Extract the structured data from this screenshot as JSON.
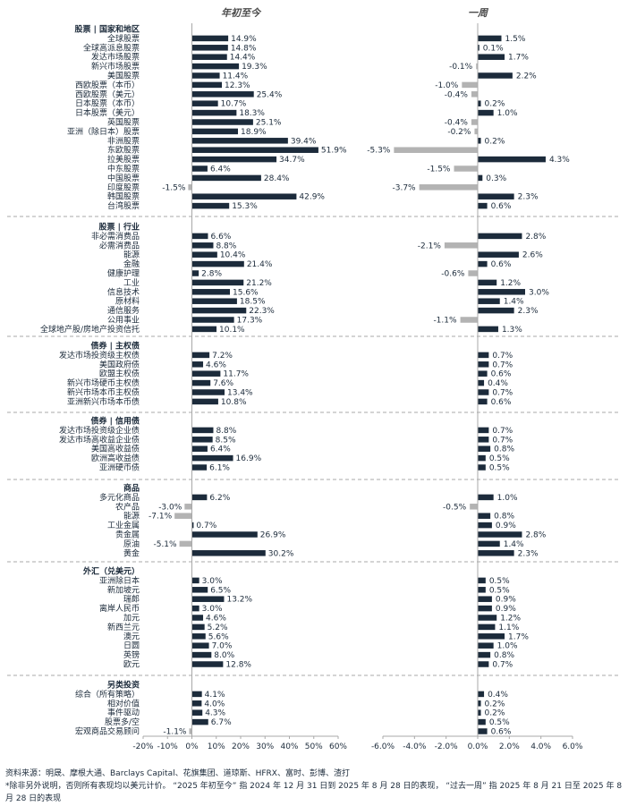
{
  "chart_data": {
    "type": "bar",
    "orientation": "horizontal",
    "panels": [
      {
        "title": "年初至今",
        "xlim": [
          -20,
          60
        ],
        "ticks": [
          "-20%",
          "-10%",
          "0%",
          "10%",
          "20%",
          "30%",
          "40%",
          "50%",
          "60%"
        ]
      },
      {
        "title": "一周",
        "xlim": [
          -6,
          6
        ],
        "ticks": [
          "-6.0%",
          "-4.0%",
          "-2.0%",
          "0.0%",
          "2.0%",
          "4.0%",
          "6.0%"
        ]
      }
    ],
    "colors": {
      "positive": "#1c2b3b",
      "negative": "#b3b3b3"
    },
    "sections": [
      {
        "title": "股票 | 国家和地区",
        "items": [
          {
            "name": "全球股票",
            "ytd": 14.9,
            "ytd_label": "14.9%",
            "week": 1.5,
            "week_label": "1.5%"
          },
          {
            "name": "全球高派息股票",
            "ytd": 14.8,
            "ytd_label": "14.8%",
            "week": 0.1,
            "week_label": "0.1%"
          },
          {
            "name": "发达市场股票",
            "ytd": 14.4,
            "ytd_label": "14.4%",
            "week": 1.7,
            "week_label": "1.7%"
          },
          {
            "name": "新兴市场股票",
            "ytd": 19.3,
            "ytd_label": "19.3%",
            "week": -0.1,
            "week_label": "-0.1%"
          },
          {
            "name": "美国股票",
            "ytd": 11.4,
            "ytd_label": "11.4%",
            "week": 2.2,
            "week_label": "2.2%"
          },
          {
            "name": "西欧股票（本币）",
            "ytd": 12.3,
            "ytd_label": "12.3%",
            "week": -1.0,
            "week_label": "-1.0%"
          },
          {
            "name": "西欧股票（美元）",
            "ytd": 25.4,
            "ytd_label": "25.4%",
            "week": -0.4,
            "week_label": "-0.4%"
          },
          {
            "name": "日本股票（本币）",
            "ytd": 10.7,
            "ytd_label": "10.7%",
            "week": 0.2,
            "week_label": "0.2%"
          },
          {
            "name": "日本股票（美元）",
            "ytd": 18.3,
            "ytd_label": "18.3%",
            "week": 1.0,
            "week_label": "1.0%"
          },
          {
            "name": "英国股票",
            "ytd": 25.1,
            "ytd_label": "25.1%",
            "week": -0.4,
            "week_label": "-0.4%"
          },
          {
            "name": "亚洲（除日本）股票",
            "ytd": 18.9,
            "ytd_label": "18.9%",
            "week": -0.2,
            "week_label": "-0.2%"
          },
          {
            "name": "非洲股票",
            "ytd": 39.4,
            "ytd_label": "39.4%",
            "week": 0.2,
            "week_label": "0.2%"
          },
          {
            "name": "东欧股票",
            "ytd": 51.9,
            "ytd_label": "51.9%",
            "week": -5.3,
            "week_label": "-5.3%"
          },
          {
            "name": "拉美股票",
            "ytd": 34.7,
            "ytd_label": "34.7%",
            "week": 4.3,
            "week_label": "4.3%"
          },
          {
            "name": "中东股票",
            "ytd": 6.4,
            "ytd_label": "6.4%",
            "week": -1.5,
            "week_label": "-1.5%"
          },
          {
            "name": "中国股票",
            "ytd": 28.4,
            "ytd_label": "28.4%",
            "week": 0.3,
            "week_label": "0.3%"
          },
          {
            "name": "印度股票",
            "ytd": -1.5,
            "ytd_label": "-1.5%",
            "week": -3.7,
            "week_label": "-3.7%"
          },
          {
            "name": "韩国股票",
            "ytd": 42.9,
            "ytd_label": "42.9%",
            "week": 2.3,
            "week_label": "2.3%"
          },
          {
            "name": "台湾股票",
            "ytd": 15.3,
            "ytd_label": "15.3%",
            "week": 0.6,
            "week_label": "0.6%"
          }
        ]
      },
      {
        "title": "股票 | 行业",
        "items": [
          {
            "name": "非必需消费品",
            "ytd": 6.6,
            "ytd_label": "6.6%",
            "week": 2.8,
            "week_label": "2.8%"
          },
          {
            "name": "必需消费品",
            "ytd": 8.8,
            "ytd_label": "8.8%",
            "week": -2.1,
            "week_label": "-2.1%"
          },
          {
            "name": "能源",
            "ytd": 10.4,
            "ytd_label": "10.4%",
            "week": 2.6,
            "week_label": "2.6%"
          },
          {
            "name": "金融",
            "ytd": 21.4,
            "ytd_label": "21.4%",
            "week": 0.6,
            "week_label": "0.6%"
          },
          {
            "name": "健康护理",
            "ytd": 2.8,
            "ytd_label": "2.8%",
            "week": -0.6,
            "week_label": "-0.6%"
          },
          {
            "name": "工业",
            "ytd": 21.2,
            "ytd_label": "21.2%",
            "week": 1.2,
            "week_label": "1.2%"
          },
          {
            "name": "信息技术",
            "ytd": 15.6,
            "ytd_label": "15.6%",
            "week": 3.0,
            "week_label": "3.0%"
          },
          {
            "name": "原材料",
            "ytd": 18.5,
            "ytd_label": "18.5%",
            "week": 1.4,
            "week_label": "1.4%"
          },
          {
            "name": "通信服务",
            "ytd": 22.3,
            "ytd_label": "22.3%",
            "week": 2.3,
            "week_label": "2.3%"
          },
          {
            "name": "公用事业",
            "ytd": 17.3,
            "ytd_label": "17.3%",
            "week": -1.1,
            "week_label": "-1.1%"
          },
          {
            "name": "全球地产股/房地产投资信托",
            "ytd": 10.1,
            "ytd_label": "10.1%",
            "week": 1.3,
            "week_label": "1.3%"
          }
        ]
      },
      {
        "title": "债券 | 主权债",
        "items": [
          {
            "name": "发达市场投资级主权债",
            "ytd": 7.2,
            "ytd_label": "7.2%",
            "week": 0.7,
            "week_label": "0.7%"
          },
          {
            "name": "美国政府债",
            "ytd": 4.6,
            "ytd_label": "4.6%",
            "week": 0.7,
            "week_label": "0.7%"
          },
          {
            "name": "欧盟主权债",
            "ytd": 11.7,
            "ytd_label": "11.7%",
            "week": 0.6,
            "week_label": "0.6%"
          },
          {
            "name": "新兴市场硬币主权债",
            "ytd": 7.6,
            "ytd_label": "7.6%",
            "week": 0.4,
            "week_label": "0.4%"
          },
          {
            "name": "新兴市场本币主权债",
            "ytd": 13.4,
            "ytd_label": "13.4%",
            "week": 0.7,
            "week_label": "0.7%"
          },
          {
            "name": "亚洲新兴市场本币债",
            "ytd": 10.8,
            "ytd_label": "10.8%",
            "week": 0.6,
            "week_label": "0.6%"
          }
        ]
      },
      {
        "title": "债券 | 信用债",
        "items": [
          {
            "name": "发达市场投资级企业债",
            "ytd": 8.8,
            "ytd_label": "8.8%",
            "week": 0.7,
            "week_label": "0.7%"
          },
          {
            "name": "发达市场高收益企业债",
            "ytd": 8.5,
            "ytd_label": "8.5%",
            "week": 0.7,
            "week_label": "0.7%"
          },
          {
            "name": "美国高收益债",
            "ytd": 6.4,
            "ytd_label": "6.4%",
            "week": 0.8,
            "week_label": "0.8%"
          },
          {
            "name": "欧洲高收益债",
            "ytd": 16.9,
            "ytd_label": "16.9%",
            "week": 0.5,
            "week_label": "0.5%"
          },
          {
            "name": "亚洲硬币债",
            "ytd": 6.1,
            "ytd_label": "6.1%",
            "week": 0.5,
            "week_label": "0.5%"
          }
        ]
      },
      {
        "title": "商品",
        "items": [
          {
            "name": "多元化商品",
            "ytd": 6.2,
            "ytd_label": "6.2%",
            "week": 1.0,
            "week_label": "1.0%"
          },
          {
            "name": "农产品",
            "ytd": -3.0,
            "ytd_label": "-3.0%",
            "week": -0.5,
            "week_label": "-0.5%"
          },
          {
            "name": "能源",
            "ytd": -7.1,
            "ytd_label": "-7.1%",
            "week": 0.8,
            "week_label": "0.8%"
          },
          {
            "name": "工业金属",
            "ytd": 0.7,
            "ytd_label": "0.7%",
            "week": 0.9,
            "week_label": "0.9%"
          },
          {
            "name": "贵金属",
            "ytd": 26.9,
            "ytd_label": "26.9%",
            "week": 2.8,
            "week_label": "2.8%"
          },
          {
            "name": "原油",
            "ytd": -5.1,
            "ytd_label": "-5.1%",
            "week": 1.4,
            "week_label": "1.4%"
          },
          {
            "name": "黄金",
            "ytd": 30.2,
            "ytd_label": "30.2%",
            "week": 2.3,
            "week_label": "2.3%"
          }
        ]
      },
      {
        "title": "外汇（兑美元）",
        "items": [
          {
            "name": "亚洲除日本",
            "ytd": 3.0,
            "ytd_label": "3.0%",
            "week": 0.5,
            "week_label": "0.5%"
          },
          {
            "name": "新加坡元",
            "ytd": 6.5,
            "ytd_label": "6.5%",
            "week": 0.5,
            "week_label": "0.5%"
          },
          {
            "name": "瑞郎",
            "ytd": 13.2,
            "ytd_label": "13.2%",
            "week": 0.9,
            "week_label": "0.9%"
          },
          {
            "name": "离岸人民币",
            "ytd": 3.0,
            "ytd_label": "3.0%",
            "week": 0.9,
            "week_label": "0.9%"
          },
          {
            "name": "加元",
            "ytd": 4.6,
            "ytd_label": "4.6%",
            "week": 1.2,
            "week_label": "1.2%"
          },
          {
            "name": "新西兰元",
            "ytd": 5.2,
            "ytd_label": "5.2%",
            "week": 1.1,
            "week_label": "1.1%"
          },
          {
            "name": "澳元",
            "ytd": 5.6,
            "ytd_label": "5.6%",
            "week": 1.7,
            "week_label": "1.7%"
          },
          {
            "name": "日圆",
            "ytd": 7.0,
            "ytd_label": "7.0%",
            "week": 1.0,
            "week_label": "1.0%"
          },
          {
            "name": "英镑",
            "ytd": 8.0,
            "ytd_label": "8.0%",
            "week": 0.8,
            "week_label": "0.8%"
          },
          {
            "name": "欧元",
            "ytd": 12.8,
            "ytd_label": "12.8%",
            "week": 0.7,
            "week_label": "0.7%"
          }
        ]
      },
      {
        "title": "另类投资",
        "items": [
          {
            "name": "综合（所有策略）",
            "ytd": 4.1,
            "ytd_label": "4.1%",
            "week": 0.4,
            "week_label": "0.4%"
          },
          {
            "name": "相对价值",
            "ytd": 4.0,
            "ytd_label": "4.0%",
            "week": 0.2,
            "week_label": "0.2%"
          },
          {
            "name": "事件驱动",
            "ytd": 4.3,
            "ytd_label": "4.3%",
            "week": 0.2,
            "week_label": "0.2%"
          },
          {
            "name": "股票多/空",
            "ytd": 6.7,
            "ytd_label": "6.7%",
            "week": 0.5,
            "week_label": "0.5%"
          },
          {
            "name": "宏观商品交易顾问",
            "ytd": -1.1,
            "ytd_label": "-1.1%",
            "week": 0.6,
            "week_label": "0.6%"
          }
        ]
      }
    ]
  },
  "footnotes": {
    "source": "资料来源：明晟、摩根大通、Barclays Capital、花旗集团、道琼斯、HFRX、富时、彭博、渣打",
    "note": "*除非另外说明，否则所有表现均以美元计价。 “2025 年初至今” 指 2024 年 12 月 31 日到 2025 年 8 月 28 日的表现， “过去一周” 指 2025 年 8 月 21 日至 2025 年 8 月 28 日的表现"
  }
}
